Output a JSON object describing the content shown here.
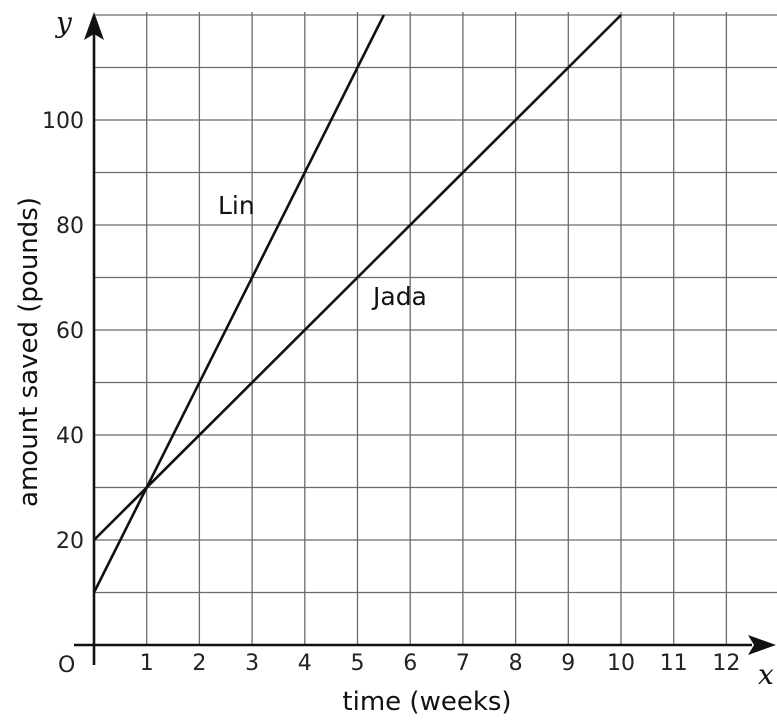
{
  "chart_data": {
    "type": "line",
    "xlabel": "time (weeks)",
    "ylabel": "amount saved (pounds)",
    "x_axis_letter": "x",
    "y_axis_letter": "y",
    "origin_label": "O",
    "xlim": [
      0,
      13
    ],
    "ylim": [
      0,
      120
    ],
    "x_grid_step": 1,
    "y_grid_step": 10,
    "x_ticks": [
      1,
      2,
      3,
      4,
      5,
      6,
      7,
      8,
      9,
      10,
      11,
      12
    ],
    "y_ticks": [
      20,
      40,
      60,
      80,
      100
    ],
    "grid": true,
    "legend": "none",
    "series": [
      {
        "name": "Lin",
        "x": [
          0,
          5.5
        ],
        "y": [
          10,
          120
        ]
      },
      {
        "name": "Jada",
        "x": [
          0,
          10
        ],
        "y": [
          20,
          120
        ]
      }
    ]
  }
}
